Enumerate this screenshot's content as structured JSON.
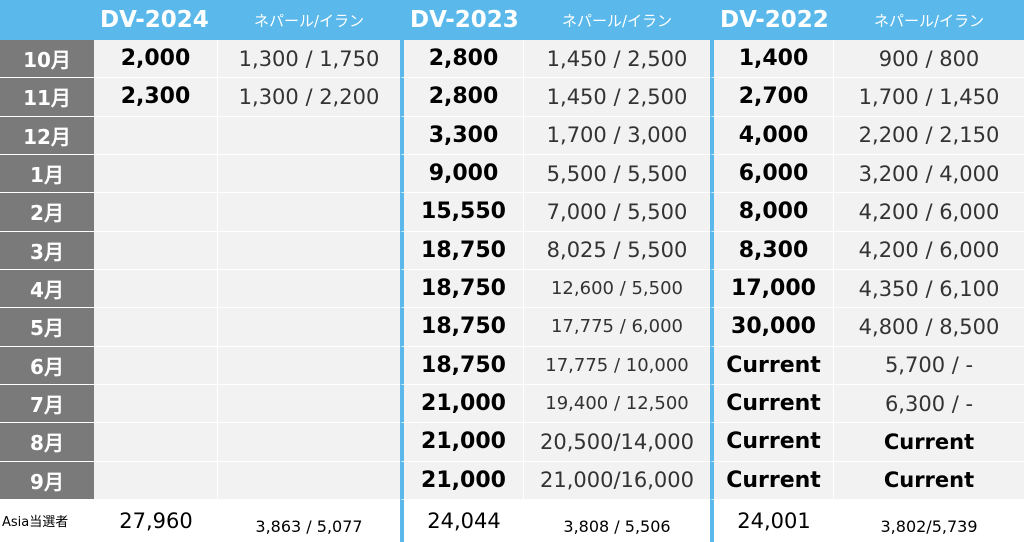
{
  "groups": [
    {
      "title": "DV-2024",
      "subtitle": "ネパール/イラン"
    },
    {
      "title": "DV-2023",
      "subtitle": "ネパール/イラン"
    },
    {
      "title": "DV-2022",
      "subtitle": "ネパール/イラン"
    }
  ],
  "rows": [
    {
      "month": "10月",
      "dv2024": "2,000",
      "np2024": "1,300 / 1,750",
      "dv2023": "2,800",
      "np2023": "1,450 / 2,500",
      "dv2022": "1,400",
      "np2022": "900 / 800"
    },
    {
      "month": "11月",
      "dv2024": "2,300",
      "np2024": "1,300 / 2,200",
      "dv2023": "2,800",
      "np2023": "1,450 / 2,500",
      "dv2022": "2,700",
      "np2022": "1,700 / 1,450"
    },
    {
      "month": "12月",
      "dv2024": "",
      "np2024": "",
      "dv2023": "3,300",
      "np2023": "1,700 / 3,000",
      "dv2022": "4,000",
      "np2022": "2,200 / 2,150"
    },
    {
      "month": "1月",
      "dv2024": "",
      "np2024": "",
      "dv2023": "9,000",
      "np2023": "5,500 / 5,500",
      "dv2022": "6,000",
      "np2022": "3,200 / 4,000"
    },
    {
      "month": "2月",
      "dv2024": "",
      "np2024": "",
      "dv2023": "15,550",
      "np2023": "7,000 / 5,500",
      "dv2022": "8,000",
      "np2022": "4,200 / 6,000"
    },
    {
      "month": "3月",
      "dv2024": "",
      "np2024": "",
      "dv2023": "18,750",
      "np2023": "8,025 / 5,500",
      "dv2022": "8,300",
      "np2022": "4,200 / 6,000"
    },
    {
      "month": "4月",
      "dv2024": "",
      "np2024": "",
      "dv2023": "18,750",
      "np2023": "12,600 / 5,500",
      "dv2022": "17,000",
      "np2022": "4,350 / 6,100"
    },
    {
      "month": "5月",
      "dv2024": "",
      "np2024": "",
      "dv2023": "18,750",
      "np2023": "17,775 / 6,000",
      "dv2022": "30,000",
      "np2022": "4,800 / 8,500"
    },
    {
      "month": "6月",
      "dv2024": "",
      "np2024": "",
      "dv2023": "18,750",
      "np2023": "17,775 / 10,000",
      "dv2022": "Current",
      "np2022": "5,700 /     -"
    },
    {
      "month": "7月",
      "dv2024": "",
      "np2024": "",
      "dv2023": "21,000",
      "np2023": "19,400 / 12,500",
      "dv2022": "Current",
      "np2022": "6,300 /     -"
    },
    {
      "month": "8月",
      "dv2024": "",
      "np2024": "",
      "dv2023": "21,000",
      "np2023": "20,500/14,000",
      "dv2022": "Current",
      "np2022": "Current"
    },
    {
      "month": "9月",
      "dv2024": "",
      "np2024": "",
      "dv2023": "21,000",
      "np2023": "21,000/16,000",
      "dv2022": "Current",
      "np2022": "Current"
    }
  ],
  "footer": {
    "label": "Asia当選者",
    "dv2024": "27,960",
    "np2024": "3,863 / 5,077",
    "dv2023": "24,044",
    "np2023": "3,808 / 5,506",
    "dv2022": "24,001",
    "np2022": "3,802/5,739"
  },
  "colors": {
    "header": "#5ab9ea",
    "month_column": "#7a7a7a",
    "cell": "#f2f2f2"
  }
}
